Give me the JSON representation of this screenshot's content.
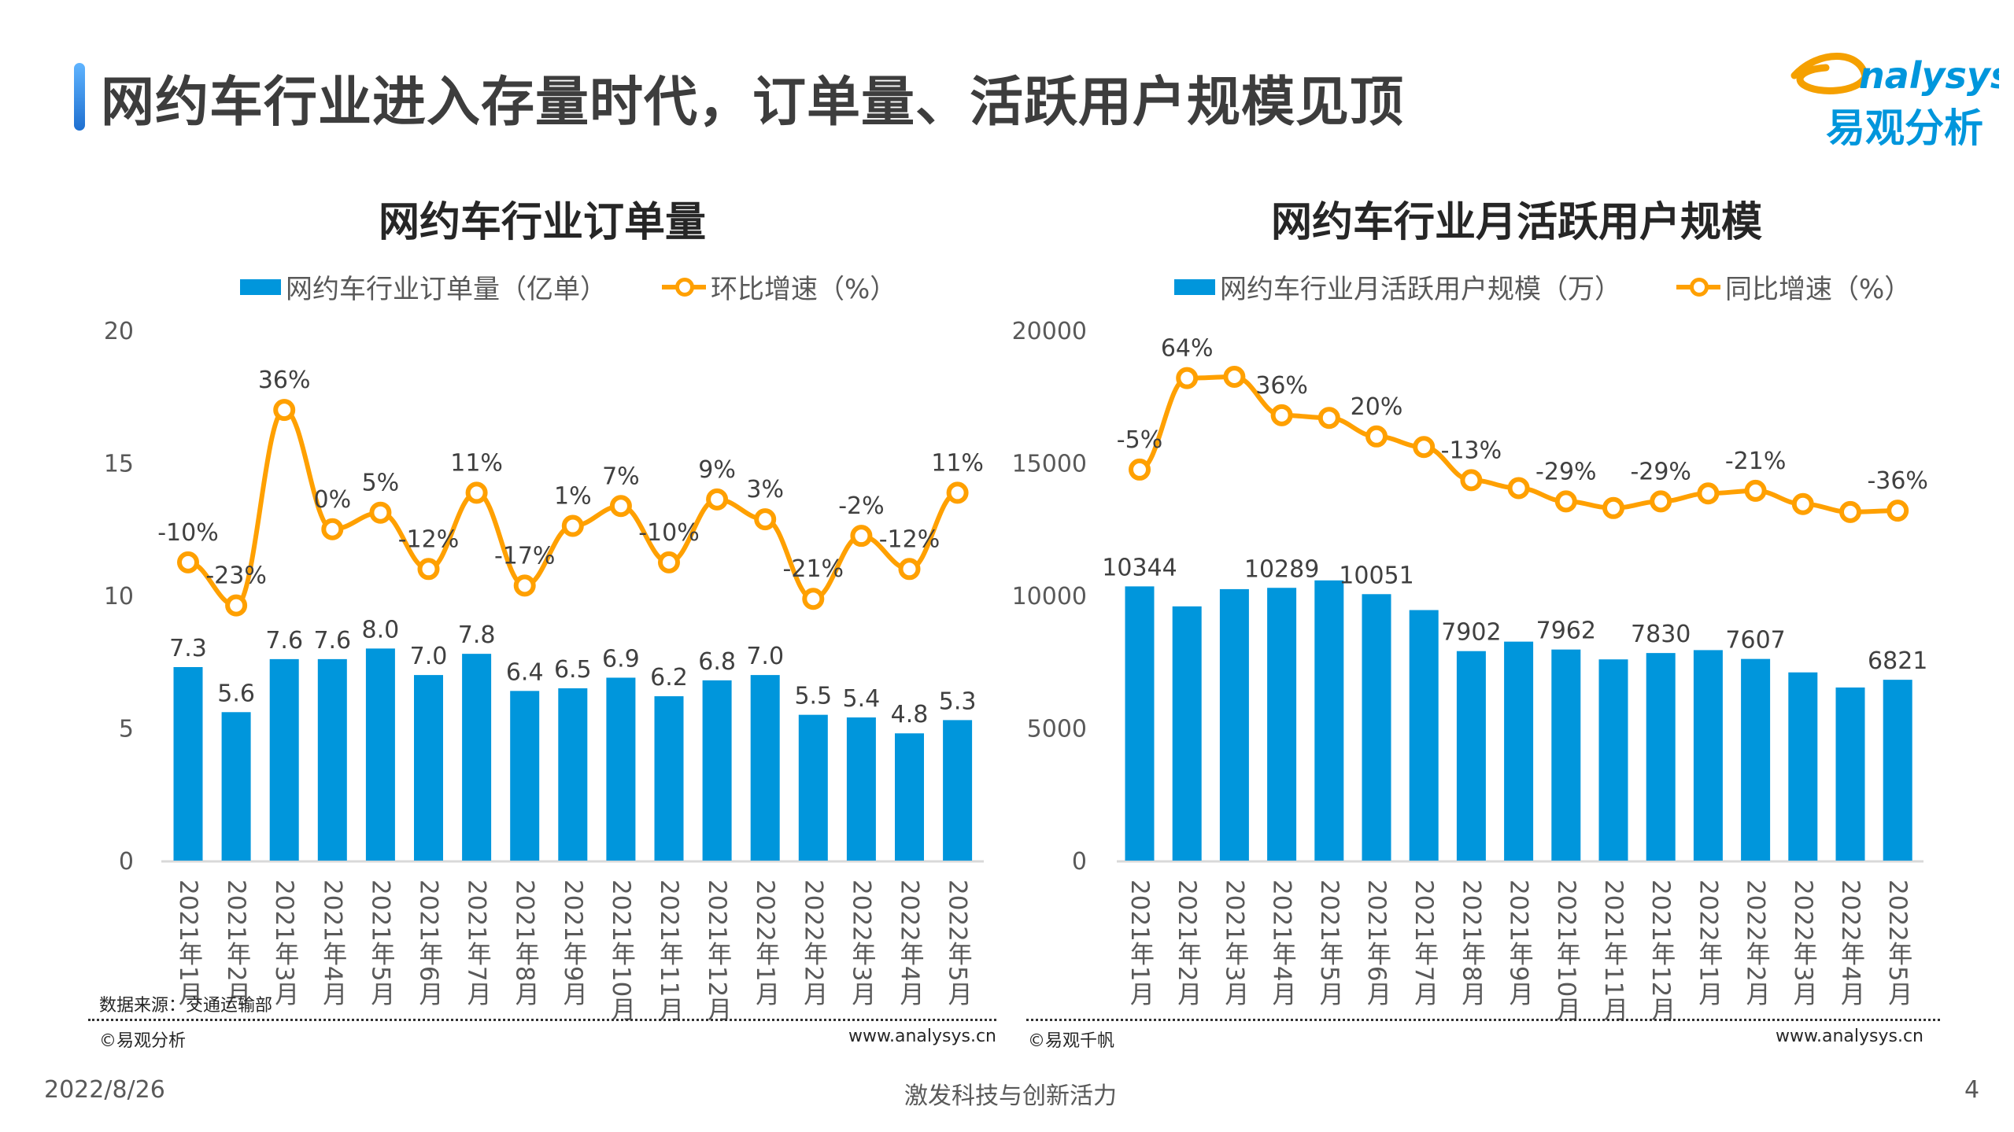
{
  "header": {
    "title": "网约车行业进入存量时代，订单量、活跃用户规模见顶",
    "logo_text": "analysys",
    "logo_cn": "易观分析"
  },
  "colors": {
    "bar": "#0096dc",
    "line": "#ffa000",
    "accent": "#2f86e0"
  },
  "chart_data": [
    {
      "type": "bar+line",
      "title": "网约车行业订单量",
      "legend": [
        "网约车行业订单量（亿单）",
        "环比增速（%）"
      ],
      "legend_placement": "top",
      "categories": [
        "2021年1月",
        "2021年2月",
        "2021年3月",
        "2021年4月",
        "2021年5月",
        "2021年6月",
        "2021年7月",
        "2021年8月",
        "2021年9月",
        "2021年10月",
        "2021年11月",
        "2021年12月",
        "2022年1月",
        "2022年2月",
        "2022年3月",
        "2022年4月",
        "2022年5月"
      ],
      "series": [
        {
          "name": "网约车行业订单量（亿单）",
          "type": "bar",
          "values": [
            7.3,
            5.6,
            7.6,
            7.6,
            8.0,
            7.0,
            7.8,
            6.4,
            6.5,
            6.9,
            6.2,
            6.8,
            7.0,
            5.5,
            5.4,
            4.8,
            5.3
          ],
          "labels": [
            "7.3",
            "5.6",
            "7.6",
            "7.6",
            "8.0",
            "7.0",
            "7.8",
            "6.4",
            "6.5",
            "6.9",
            "6.2",
            "6.8",
            "7.0",
            "5.5",
            "5.4",
            "4.8",
            "5.3"
          ]
        },
        {
          "name": "环比增速（%）",
          "type": "line",
          "axis": "secondary",
          "values": [
            -10,
            -23,
            36,
            0,
            5,
            -12,
            11,
            -17,
            1,
            7,
            -10,
            9,
            3,
            -21,
            -2,
            -12,
            11
          ],
          "labels": [
            "-10%",
            "-23%",
            "36%",
            "0%",
            "5%",
            "-12%",
            "11%",
            "-17%",
            "1%",
            "7%",
            "-10%",
            "9%",
            "3%",
            "-21%",
            "-2%",
            "-12%",
            "11%"
          ]
        }
      ],
      "ylim": [
        0,
        20
      ],
      "y2lim": [
        -100,
        60
      ],
      "yticks": [
        "0",
        "5",
        "10",
        "15",
        "20"
      ],
      "grid": false,
      "source": "数据来源：交通运输部",
      "copyright": "©易观分析",
      "url": "www.analysys.cn"
    },
    {
      "type": "bar+line",
      "title": "网约车行业月活跃用户规模",
      "legend": [
        "网约车行业月活跃用户规模（万）",
        "同比增速（%）"
      ],
      "legend_placement": "top",
      "categories": [
        "2021年1月",
        "2021年2月",
        "2021年3月",
        "2021年4月",
        "2021年5月",
        "2021年6月",
        "2021年7月",
        "2021年8月",
        "2021年9月",
        "2021年10月",
        "2021年11月",
        "2021年12月",
        "2022年1月",
        "2022年2月",
        "2022年3月",
        "2022年4月",
        "2022年5月"
      ],
      "series": [
        {
          "name": "网约车行业月活跃用户规模（万）",
          "type": "bar",
          "values": [
            10344,
            9590,
            10240,
            10289,
            10570,
            10051,
            9450,
            7902,
            8260,
            7962,
            7590,
            7830,
            7940,
            7607,
            7100,
            6530,
            6821
          ],
          "labels": [
            "10344",
            null,
            null,
            "10289",
            null,
            "10051",
            null,
            "7902",
            null,
            "7962",
            null,
            "7830",
            null,
            "7607",
            null,
            null,
            "6821"
          ]
        },
        {
          "name": "同比增速（%）",
          "type": "line",
          "axis": "secondary",
          "values": [
            -5,
            64,
            65,
            36,
            34,
            20,
            12,
            -13,
            -19,
            -29,
            -34,
            -29,
            -23,
            -21,
            -31,
            -37,
            -36
          ],
          "labels": [
            "-5%",
            "64%",
            null,
            "36%",
            null,
            "20%",
            null,
            "-13%",
            null,
            "-29%",
            null,
            "-29%",
            null,
            "-21%",
            null,
            null,
            "-36%"
          ]
        }
      ],
      "ylim": [
        0,
        20000
      ],
      "y2lim": [
        -300,
        100
      ],
      "yticks": [
        "0",
        "5000",
        "10000",
        "15000",
        "20000"
      ],
      "grid": false,
      "copyright": "©易观千帆",
      "url": "www.analysys.cn"
    }
  ],
  "footer": {
    "date": "2022/8/26",
    "slogan": "激发科技与创新活力",
    "page": "4"
  }
}
